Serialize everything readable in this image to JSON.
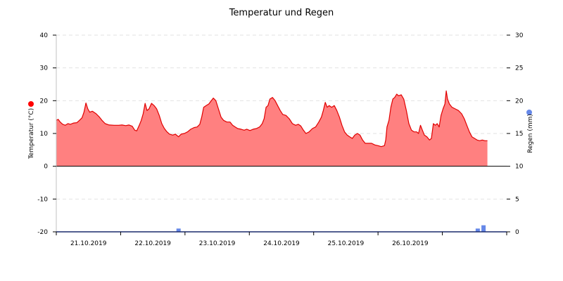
{
  "chart_data": {
    "type": "area",
    "title": "Temperatur und Regen",
    "y_left": {
      "label": "Temperatur (°C)",
      "ticks": [
        40,
        30,
        20,
        10,
        0,
        -10,
        -20
      ],
      "range": [
        -20,
        40
      ],
      "marker_color": "#ff0000"
    },
    "y_right": {
      "label": "Regen (mm)",
      "ticks": [
        30,
        25,
        20,
        15,
        10,
        5,
        0
      ],
      "range": [
        0,
        30
      ],
      "marker_color": "#6688e8"
    },
    "x_ticks": [
      "21.10.2019",
      "22.10.2019",
      "23.10.2019",
      "24.10.2019",
      "25.10.2019",
      "26.10.2019"
    ],
    "x_range": [
      20.0,
      27.0
    ],
    "grid": true,
    "colors": {
      "temperature_line": "#e00000",
      "temperature_fill": "#ff8080",
      "rain_bar": "#6688e8",
      "baseline": "#1a2a6c"
    },
    "series": [
      {
        "kind": "temperature",
        "points": [
          [
            20.0,
            14.0
          ],
          [
            20.03,
            14.3
          ],
          [
            20.06,
            13.5
          ],
          [
            20.1,
            12.8
          ],
          [
            20.14,
            12.5
          ],
          [
            20.18,
            13.0
          ],
          [
            20.22,
            12.8
          ],
          [
            20.27,
            13.2
          ],
          [
            20.32,
            13.3
          ],
          [
            20.36,
            14.0
          ],
          [
            20.4,
            14.8
          ],
          [
            20.43,
            16.5
          ],
          [
            20.46,
            19.3
          ],
          [
            20.49,
            17.5
          ],
          [
            20.52,
            16.5
          ],
          [
            20.56,
            16.8
          ],
          [
            20.62,
            16.0
          ],
          [
            20.67,
            15.0
          ],
          [
            20.71,
            14.0
          ],
          [
            20.76,
            13.0
          ],
          [
            20.82,
            12.6
          ],
          [
            20.9,
            12.5
          ],
          [
            20.97,
            12.5
          ],
          [
            21.02,
            12.6
          ],
          [
            21.08,
            12.4
          ],
          [
            21.13,
            12.6
          ],
          [
            21.18,
            12.2
          ],
          [
            21.22,
            11.0
          ],
          [
            21.25,
            10.8
          ],
          [
            21.29,
            12.5
          ],
          [
            21.32,
            14.0
          ],
          [
            21.35,
            16.0
          ],
          [
            21.38,
            19.2
          ],
          [
            21.41,
            17.0
          ],
          [
            21.44,
            17.5
          ],
          [
            21.48,
            19.2
          ],
          [
            21.52,
            18.5
          ],
          [
            21.56,
            17.5
          ],
          [
            21.6,
            15.5
          ],
          [
            21.64,
            13.0
          ],
          [
            21.68,
            11.5
          ],
          [
            21.72,
            10.5
          ],
          [
            21.76,
            9.8
          ],
          [
            21.81,
            9.5
          ],
          [
            21.85,
            9.8
          ],
          [
            21.9,
            9.0
          ],
          [
            21.94,
            9.8
          ],
          [
            21.99,
            10.0
          ],
          [
            22.04,
            10.5
          ],
          [
            22.09,
            11.3
          ],
          [
            22.14,
            11.8
          ],
          [
            22.19,
            12.0
          ],
          [
            22.23,
            12.8
          ],
          [
            22.26,
            15.0
          ],
          [
            22.29,
            18.0
          ],
          [
            22.33,
            18.5
          ],
          [
            22.37,
            19.0
          ],
          [
            22.41,
            20.0
          ],
          [
            22.44,
            20.8
          ],
          [
            22.48,
            20.0
          ],
          [
            22.52,
            17.5
          ],
          [
            22.56,
            15.0
          ],
          [
            22.6,
            14.0
          ],
          [
            22.65,
            13.5
          ],
          [
            22.7,
            13.5
          ],
          [
            22.74,
            12.5
          ],
          [
            22.78,
            12.0
          ],
          [
            22.82,
            11.5
          ],
          [
            22.87,
            11.3
          ],
          [
            22.92,
            11.0
          ],
          [
            22.96,
            11.3
          ],
          [
            23.01,
            10.9
          ],
          [
            23.06,
            11.3
          ],
          [
            23.11,
            11.5
          ],
          [
            23.16,
            12.0
          ],
          [
            23.2,
            13.0
          ],
          [
            23.23,
            14.5
          ],
          [
            23.26,
            18.0
          ],
          [
            23.29,
            18.5
          ],
          [
            23.32,
            20.5
          ],
          [
            23.36,
            21.0
          ],
          [
            23.4,
            20.0
          ],
          [
            23.44,
            18.5
          ],
          [
            23.48,
            17.0
          ],
          [
            23.52,
            15.8
          ],
          [
            23.57,
            15.5
          ],
          [
            23.62,
            14.5
          ],
          [
            23.67,
            13.0
          ],
          [
            23.72,
            12.5
          ],
          [
            23.76,
            12.8
          ],
          [
            23.8,
            12.3
          ],
          [
            23.84,
            11.0
          ],
          [
            23.88,
            10.0
          ],
          [
            23.93,
            10.5
          ],
          [
            23.98,
            11.5
          ],
          [
            24.03,
            12.0
          ],
          [
            24.08,
            13.5
          ],
          [
            24.12,
            15.0
          ],
          [
            24.15,
            17.0
          ],
          [
            24.18,
            19.5
          ],
          [
            24.21,
            18.0
          ],
          [
            24.24,
            18.5
          ],
          [
            24.28,
            18.0
          ],
          [
            24.32,
            18.5
          ],
          [
            24.36,
            17.0
          ],
          [
            24.4,
            15.0
          ],
          [
            24.44,
            12.5
          ],
          [
            24.48,
            10.5
          ],
          [
            24.52,
            9.5
          ],
          [
            24.56,
            9.0
          ],
          [
            24.6,
            8.5
          ],
          [
            24.64,
            9.5
          ],
          [
            24.68,
            10.0
          ],
          [
            24.72,
            9.5
          ],
          [
            24.76,
            8.0
          ],
          [
            24.8,
            7.0
          ],
          [
            24.85,
            7.0
          ],
          [
            24.9,
            7.0
          ],
          [
            24.95,
            6.5
          ],
          [
            25.0,
            6.3
          ],
          [
            25.05,
            6.0
          ],
          [
            25.1,
            6.3
          ],
          [
            25.12,
            8.0
          ],
          [
            25.14,
            12.0
          ],
          [
            25.17,
            14.0
          ],
          [
            25.2,
            18.0
          ],
          [
            25.23,
            20.5
          ],
          [
            25.26,
            21.0
          ],
          [
            25.29,
            22.0
          ],
          [
            25.32,
            21.5
          ],
          [
            25.36,
            21.8
          ],
          [
            25.4,
            20.5
          ],
          [
            25.44,
            17.0
          ],
          [
            25.48,
            13.0
          ],
          [
            25.52,
            11.0
          ],
          [
            25.56,
            10.5
          ],
          [
            25.6,
            10.5
          ],
          [
            25.63,
            10.0
          ],
          [
            25.66,
            12.5
          ],
          [
            25.69,
            11.0
          ],
          [
            25.72,
            9.5
          ],
          [
            25.76,
            9.0
          ],
          [
            25.8,
            8.0
          ],
          [
            25.83,
            8.5
          ],
          [
            25.86,
            13.0
          ],
          [
            25.89,
            12.5
          ],
          [
            25.92,
            13.0
          ],
          [
            25.95,
            12.0
          ],
          [
            25.98,
            15.5
          ],
          [
            26.01,
            17.5
          ],
          [
            26.04,
            19.0
          ],
          [
            26.06,
            23.0
          ],
          [
            26.08,
            20.5
          ],
          [
            26.11,
            19.0
          ],
          [
            26.15,
            18.0
          ],
          [
            26.2,
            17.5
          ],
          [
            26.25,
            17.0
          ],
          [
            26.3,
            16.0
          ],
          [
            26.34,
            14.5
          ],
          [
            26.38,
            12.5
          ],
          [
            26.42,
            10.5
          ],
          [
            26.46,
            9.0
          ],
          [
            26.5,
            8.5
          ],
          [
            26.54,
            8.0
          ],
          [
            26.58,
            7.8
          ],
          [
            26.62,
            8.0
          ],
          [
            26.66,
            7.8
          ],
          [
            26.7,
            7.8
          ]
        ]
      },
      {
        "kind": "rain",
        "bars": [
          [
            21.9,
            0.5
          ],
          [
            26.55,
            0.5
          ],
          [
            26.64,
            1.0
          ]
        ]
      }
    ]
  }
}
